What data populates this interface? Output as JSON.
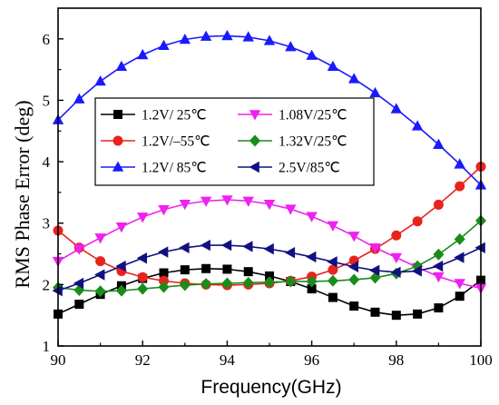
{
  "chart_data": {
    "type": "line",
    "title": "",
    "xlabel": "Frequency(GHz)",
    "ylabel": "RMS Phase Error (deg)",
    "xlim": [
      90,
      100
    ],
    "ylim": [
      1,
      6.5
    ],
    "xticks": [
      90,
      92,
      94,
      96,
      98,
      100
    ],
    "yticks": [
      1,
      2,
      3,
      4,
      5,
      6
    ],
    "grid": false,
    "legend_position": "inside-center-left",
    "x": [
      90,
      90.5,
      91,
      91.5,
      92,
      92.5,
      93,
      93.5,
      94,
      94.5,
      95,
      95.5,
      96,
      96.5,
      97,
      97.5,
      98,
      98.5,
      99,
      99.5,
      100
    ],
    "series": [
      {
        "name": "1.2V/ 25℃",
        "color": "#000000",
        "marker": "square",
        "values": [
          1.52,
          1.68,
          1.84,
          1.98,
          2.1,
          2.19,
          2.24,
          2.26,
          2.25,
          2.21,
          2.14,
          2.05,
          1.93,
          1.79,
          1.65,
          1.55,
          1.5,
          1.52,
          1.62,
          1.81,
          2.07
        ]
      },
      {
        "name": "1.2V/–55℃",
        "color": "#e8231e",
        "marker": "circle",
        "values": [
          2.88,
          2.6,
          2.38,
          2.22,
          2.12,
          2.06,
          2.02,
          2.0,
          1.99,
          2.0,
          2.02,
          2.06,
          2.13,
          2.24,
          2.39,
          2.58,
          2.8,
          3.03,
          3.3,
          3.6,
          3.92
        ]
      },
      {
        "name": "1.2V/ 85℃",
        "color": "#1a1aff",
        "marker": "triangle-up",
        "values": [
          4.68,
          5.02,
          5.31,
          5.55,
          5.74,
          5.89,
          5.99,
          6.04,
          6.05,
          6.03,
          5.97,
          5.87,
          5.73,
          5.55,
          5.35,
          5.12,
          4.86,
          4.58,
          4.28,
          3.96,
          3.62
        ]
      },
      {
        "name": "1.08V/25℃",
        "color": "#ee22ee",
        "marker": "triangle-down",
        "values": [
          2.38,
          2.58,
          2.76,
          2.94,
          3.1,
          3.22,
          3.31,
          3.36,
          3.38,
          3.36,
          3.31,
          3.23,
          3.11,
          2.96,
          2.79,
          2.6,
          2.44,
          2.28,
          2.13,
          2.02,
          1.94
        ]
      },
      {
        "name": "1.32V/25℃",
        "color": "#1a8c1a",
        "marker": "diamond",
        "values": [
          1.95,
          1.91,
          1.89,
          1.9,
          1.93,
          1.96,
          1.99,
          2.01,
          2.02,
          2.03,
          2.04,
          2.05,
          2.05,
          2.06,
          2.08,
          2.11,
          2.18,
          2.3,
          2.49,
          2.74,
          3.04
        ]
      },
      {
        "name": "2.5V/85℃",
        "color": "#101080",
        "marker": "triangle-left",
        "values": [
          1.9,
          2.02,
          2.16,
          2.3,
          2.43,
          2.53,
          2.6,
          2.64,
          2.64,
          2.62,
          2.58,
          2.52,
          2.45,
          2.37,
          2.29,
          2.23,
          2.2,
          2.22,
          2.3,
          2.44,
          2.6
        ]
      }
    ]
  }
}
